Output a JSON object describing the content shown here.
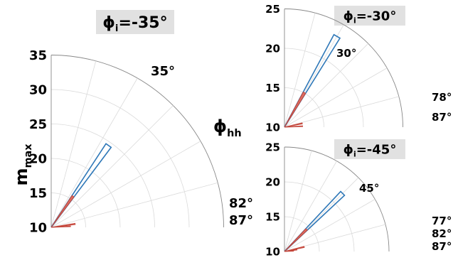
{
  "chart_data": [
    {
      "type": "polar",
      "title_main": "ϕ",
      "title_sub": "i",
      "title_value": "=-35°",
      "ylabel_main": "m",
      "ylabel_sub": "max",
      "rlim": [
        10,
        35
      ],
      "rticks": [
        "10",
        "15",
        "20",
        "25",
        "30",
        "35"
      ],
      "theta_range_deg": [
        0,
        90
      ],
      "grid": true,
      "series_label_main": "ϕ",
      "series_label_sub": "hh",
      "wedges": [
        {
          "angle_deg": 35,
          "rmax": 24.5,
          "style": "outline",
          "label": "35°"
        },
        {
          "angle_deg": 82,
          "rmax": 13.5,
          "style": "filled",
          "label": "82°"
        },
        {
          "angle_deg": 87,
          "rmax": 12.8,
          "style": "filled",
          "label": "87°"
        }
      ]
    },
    {
      "type": "polar",
      "title_main": "ϕ",
      "title_sub": "i",
      "title_value": "=-30°",
      "rlim": [
        10,
        25
      ],
      "rticks": [
        "10",
        "15",
        "20",
        "25"
      ],
      "theta_range_deg": [
        0,
        90
      ],
      "grid": true,
      "wedges": [
        {
          "angle_deg": 30,
          "rmax": 23.3,
          "style": "outline",
          "label": "30°"
        },
        {
          "angle_deg": 78,
          "rmax": 12.3,
          "style": "filled",
          "label": "78°"
        },
        {
          "angle_deg": 87,
          "rmax": 12.3,
          "style": "filled",
          "label": "87°"
        }
      ]
    },
    {
      "type": "polar",
      "title_main": "ϕ",
      "title_sub": "i",
      "title_value": "=-45°",
      "rlim": [
        10,
        25
      ],
      "rticks": [
        "10",
        "15",
        "20",
        "25"
      ],
      "theta_range_deg": [
        0,
        90
      ],
      "grid": true,
      "wedges": [
        {
          "angle_deg": 45,
          "rmax": 21.8,
          "style": "outline",
          "label": "45°"
        },
        {
          "angle_deg": 77,
          "rmax": 12.9,
          "style": "filled",
          "label": "77°"
        },
        {
          "angle_deg": 82,
          "rmax": 11.8,
          "style": "filled",
          "label": "82°"
        },
        {
          "angle_deg": 87,
          "rmax": 11.3,
          "style": "filled",
          "label": "87°"
        }
      ]
    }
  ],
  "colors": {
    "outline_wedge": "#2f78b8",
    "filled_wedge": "#dc6f63",
    "filled_wedge_edge": "#c4463b",
    "title_box": "#e1e1e1"
  }
}
